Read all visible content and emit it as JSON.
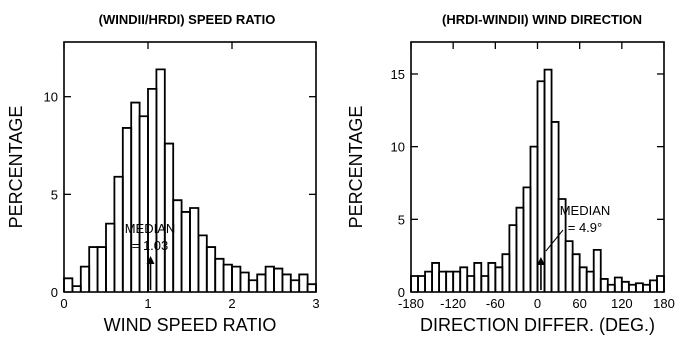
{
  "chart_data": [
    {
      "type": "histogram",
      "title": "(WINDII/HRDI) SPEED RATIO",
      "xlabel": "WIND SPEED RATIO",
      "ylabel": "PERCENTAGE",
      "xlim": [
        0,
        3
      ],
      "ylim": [
        0,
        12.8
      ],
      "xticks": [
        0,
        1,
        2,
        3
      ],
      "yticks": [
        0,
        5,
        10
      ],
      "bin_width": 0.1,
      "x": [
        0.05,
        0.15,
        0.25,
        0.35,
        0.45,
        0.55,
        0.65,
        0.75,
        0.85,
        0.95,
        1.05,
        1.15,
        1.25,
        1.35,
        1.45,
        1.55,
        1.65,
        1.75,
        1.85,
        1.95,
        2.05,
        2.15,
        2.25,
        2.35,
        2.45,
        2.55,
        2.65,
        2.75,
        2.85,
        2.95
      ],
      "values": [
        0.7,
        0.3,
        1.3,
        2.3,
        2.3,
        3.5,
        5.9,
        8.4,
        9.7,
        9.0,
        10.4,
        11.4,
        7.6,
        4.7,
        4.1,
        4.3,
        2.9,
        2.3,
        1.7,
        1.4,
        1.3,
        1.0,
        0.6,
        0.9,
        1.3,
        1.2,
        0.9,
        0.6,
        0.9,
        0.4
      ],
      "annotation": {
        "text": [
          "MEDIAN",
          "= 1.03"
        ],
        "value": 1.03
      }
    },
    {
      "type": "histogram",
      "title": "(HRDI-WINDII) WIND DIRECTION",
      "xlabel": "DIRECTION DIFFER. (DEG.)",
      "ylabel": "PERCENTAGE",
      "xlim": [
        -180,
        180
      ],
      "ylim": [
        0,
        17.2
      ],
      "xticks": [
        -180,
        -120,
        -60,
        0,
        60,
        120,
        180
      ],
      "yticks": [
        0,
        5,
        10,
        15
      ],
      "bin_width": 10,
      "x": [
        -175,
        -165,
        -155,
        -145,
        -135,
        -125,
        -115,
        -105,
        -95,
        -85,
        -75,
        -65,
        -55,
        -45,
        -35,
        -25,
        -15,
        -5,
        5,
        15,
        25,
        35,
        45,
        55,
        65,
        75,
        85,
        95,
        105,
        115,
        125,
        135,
        145,
        155,
        165,
        175
      ],
      "values": [
        1.1,
        1.1,
        1.4,
        2.0,
        1.4,
        1.4,
        1.4,
        1.7,
        1.1,
        2.0,
        1.1,
        2.0,
        1.7,
        2.6,
        4.6,
        5.8,
        7.2,
        10.0,
        14.5,
        15.3,
        11.7,
        6.4,
        3.5,
        2.6,
        1.7,
        1.4,
        2.9,
        0.9,
        0.5,
        1.0,
        0.7,
        0.5,
        0.6,
        0.5,
        0.8,
        1.1
      ],
      "annotation": {
        "text": [
          "MEDIAN",
          "= 4.9°"
        ],
        "value": 4.9
      }
    }
  ]
}
